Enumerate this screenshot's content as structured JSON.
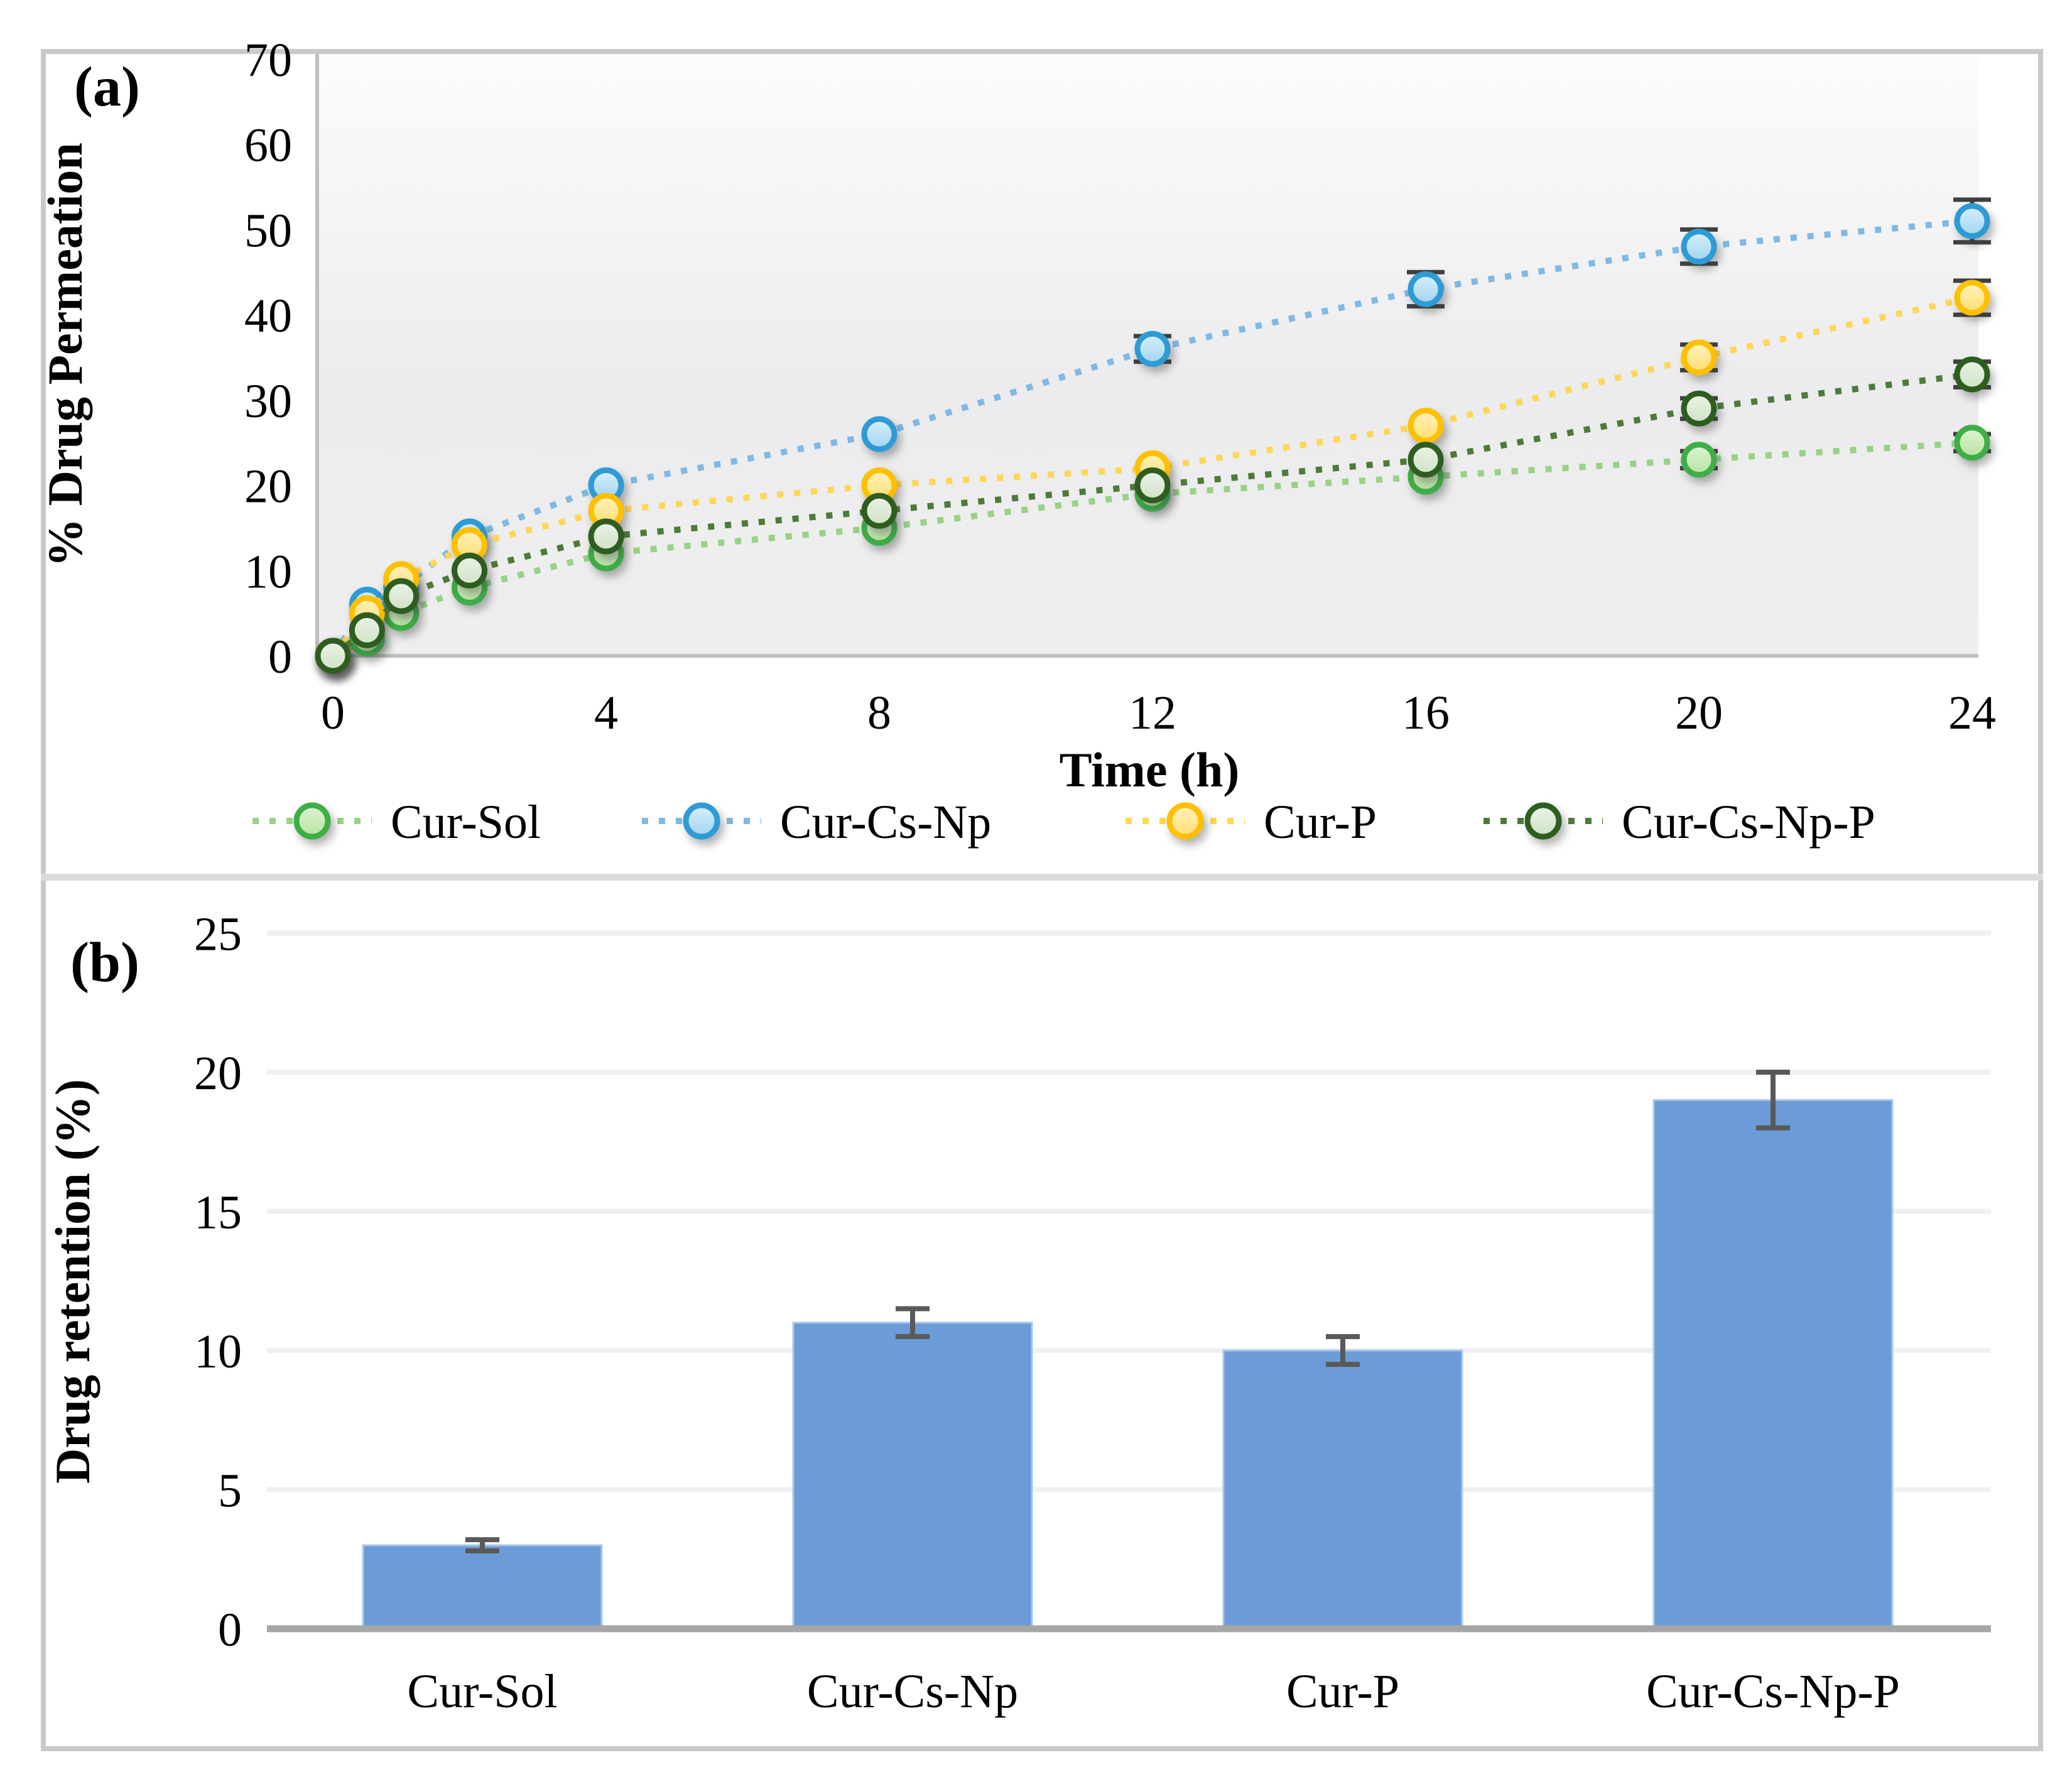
{
  "panel_a": {
    "label": "(a)",
    "y_axis_title": "% Drug Permeation",
    "x_axis_title": "Time (h)"
  },
  "panel_b": {
    "label": "(b)",
    "y_axis_title": "Drug retention (%)"
  },
  "colors": {
    "frame_border": "#c9c9c9",
    "panel_divider": "#dcdcdc",
    "axis_line_a": "#bfbfbf",
    "axis_line_b": "#a6a6a6",
    "gridline_b": "#f0f0f1",
    "error_bar_a": "#404040",
    "error_bar_b": "#595959",
    "bar_fill": "#6b9cd7",
    "bar_edge": "#a9c8e9",
    "plot_bg_top": "#fcfcfc",
    "plot_bg_bottom": "#ececee"
  },
  "chart_data": [
    {
      "type": "line",
      "panel": "a",
      "title": "",
      "xlabel": "Time (h)",
      "ylabel": "% Drug Permeation",
      "x": [
        0,
        0.5,
        1,
        2,
        4,
        8,
        12,
        16,
        20,
        24
      ],
      "x_tick_labels": [
        "0",
        "4",
        "8",
        "12",
        "16",
        "20",
        "24"
      ],
      "x_ticks": [
        0,
        4,
        8,
        12,
        16,
        20,
        24
      ],
      "xlim": [
        0,
        24
      ],
      "ylim": [
        0,
        70
      ],
      "y_ticks": [
        0,
        10,
        20,
        30,
        40,
        50,
        60,
        70
      ],
      "grid": false,
      "legend_position": "bottom",
      "line_style": "dotted",
      "series": [
        {
          "name": "Cur-Sol",
          "marker_stroke": "#3fae47",
          "marker_fill_light": "#dff3d4",
          "marker_fill_dark": "#b5e39e",
          "line_color": "#99d284",
          "values": [
            0,
            2,
            5,
            8,
            12,
            15,
            19,
            21,
            23,
            25
          ],
          "errors": [
            null,
            null,
            null,
            null,
            null,
            null,
            null,
            null,
            1,
            1
          ]
        },
        {
          "name": "Cur-Cs-Np",
          "marker_stroke": "#2e9bd5",
          "marker_fill_light": "#d8effb",
          "marker_fill_dark": "#a0d4f1",
          "line_color": "#7fb9e5",
          "values": [
            0,
            6,
            8,
            14,
            20,
            26,
            36,
            43,
            48,
            51
          ],
          "errors": [
            null,
            null,
            null,
            null,
            null,
            null,
            1.5,
            2,
            2,
            2.5
          ]
        },
        {
          "name": "Cur-P",
          "marker_stroke": "#ffc000",
          "marker_fill_light": "#fff2be",
          "marker_fill_dark": "#ffdf70",
          "line_color": "#ffd655",
          "values": [
            0,
            5,
            9,
            13,
            17,
            20,
            22,
            27,
            35,
            42
          ],
          "errors": [
            null,
            null,
            null,
            null,
            null,
            null,
            null,
            null,
            1.5,
            2
          ]
        },
        {
          "name": "Cur-Cs-Np-P",
          "marker_stroke": "#2e5d20",
          "marker_fill_light": "#ebf2e6",
          "marker_fill_dark": "#cfe3c6",
          "line_color": "#4e7a39",
          "values": [
            0,
            3,
            7,
            10,
            14,
            17,
            20,
            23,
            29,
            33
          ],
          "errors": [
            null,
            null,
            null,
            null,
            null,
            null,
            null,
            null,
            1.2,
            1.5
          ]
        }
      ]
    },
    {
      "type": "bar",
      "panel": "b",
      "title": "",
      "xlabel": "",
      "ylabel": "Drug retention (%)",
      "categories": [
        "Cur-Sol",
        "Cur-Cs-Np",
        "Cur-P",
        "Cur-Cs-Np-P"
      ],
      "values": [
        3,
        11,
        10,
        19
      ],
      "errors": [
        0.2,
        0.5,
        0.5,
        1.0
      ],
      "ylim": [
        0,
        25
      ],
      "y_ticks": [
        0,
        5,
        10,
        15,
        20,
        25
      ],
      "grid": true,
      "legend_position": "none"
    }
  ]
}
